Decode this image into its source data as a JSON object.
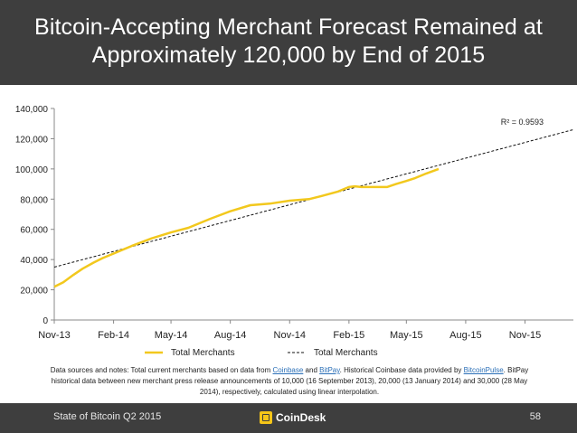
{
  "slide": {
    "title_line1": "Bitcoin-Accepting Merchant Forecast Remained at",
    "title_line2": "Approximately 120,000 by End of 2015",
    "colors": {
      "title_bar": "#3e3e3e",
      "series": "#f2c81d",
      "trend": "#111111",
      "link": "#2a6fb7"
    }
  },
  "chart_data": {
    "type": "line",
    "title": "",
    "xlabel": "",
    "ylabel": "",
    "ylim": [
      0,
      140000
    ],
    "yticks": [
      "0",
      "20,000",
      "40,000",
      "60,000",
      "80,000",
      "100,000",
      "120,000",
      "140,000"
    ],
    "xlim": [
      "2013-11-01",
      "2016-01-15"
    ],
    "xticks": [
      "Nov-13",
      "Feb-14",
      "May-14",
      "Aug-14",
      "Nov-14",
      "Feb-15",
      "May-15",
      "Aug-15",
      "Nov-15"
    ],
    "series": [
      {
        "name": "Total Merchants",
        "style": "solid",
        "x": [
          "2013-11-01",
          "2013-11-15",
          "2013-12-01",
          "2013-12-15",
          "2014-01-01",
          "2014-01-15",
          "2014-02-01",
          "2014-03-01",
          "2014-04-01",
          "2014-05-01",
          "2014-05-28",
          "2014-07-01",
          "2014-08-01",
          "2014-09-01",
          "2014-10-01",
          "2014-11-01",
          "2014-12-01",
          "2014-12-20",
          "2015-01-15",
          "2015-02-01",
          "2015-02-10",
          "2015-02-20",
          "2015-03-01",
          "2015-03-15",
          "2015-04-01",
          "2015-04-15",
          "2015-05-01",
          "2015-05-15",
          "2015-06-01",
          "2015-06-20"
        ],
        "y": [
          22000,
          25000,
          30000,
          34000,
          38000,
          41000,
          44000,
          49000,
          54000,
          58000,
          61000,
          67000,
          72000,
          76000,
          77000,
          79000,
          80000,
          82000,
          85000,
          88000,
          88500,
          88000,
          88000,
          88000,
          88000,
          90000,
          92000,
          94000,
          97000,
          100000
        ]
      },
      {
        "name": "Total Merchants",
        "style": "dashed",
        "x": [
          "2013-11-01",
          "2016-01-15"
        ],
        "y": [
          35000,
          126000
        ]
      }
    ],
    "annotations": [
      {
        "text": "R² = 0.9593"
      }
    ],
    "legend": "bottom",
    "grid": false
  },
  "notes": {
    "t1": "Data sources and notes: Total current merchants based on data from ",
    "link1": "Coinbase",
    "t2": " and ",
    "link2": "BitPay",
    "t3": ". Historical Coinbase data provided by ",
    "link3": "BitcoinPulse",
    "t4": ". BitPay historical data between new merchant press release announcements of 10,000 (16 September 2013), 20,000 (13 January 2014) and 30,000 (28 May 2014), respectively, calculated using linear interpolation."
  },
  "footer": {
    "left": "State of Bitcoin Q2 2015",
    "brand": "CoinDesk",
    "page_number": "58"
  }
}
